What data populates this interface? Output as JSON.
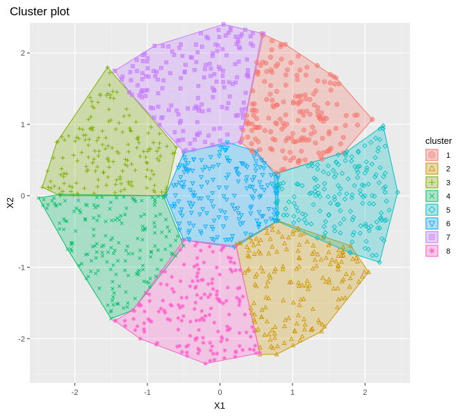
{
  "chart_data": {
    "type": "scatter",
    "title": "Cluster plot",
    "xlabel": "X1",
    "ylabel": "X2",
    "xlim": [
      -2.62,
      2.62
    ],
    "ylim": [
      -2.62,
      2.42
    ],
    "x_ticks": [
      -2,
      -1,
      0,
      1,
      2
    ],
    "y_ticks": [
      -2,
      -1,
      0,
      1,
      2
    ],
    "grid": true,
    "legend": {
      "title": "cluster",
      "placement": "right"
    },
    "series": [
      {
        "name": "1",
        "color": "#F8766D",
        "shape": "circle-in-circle",
        "hull": [
          [
            0.28,
            0.75
          ],
          [
            0.58,
            2.27
          ],
          [
            0.9,
            2.12
          ],
          [
            1.6,
            1.65
          ],
          [
            2.1,
            1.07
          ],
          [
            1.7,
            0.6
          ],
          [
            0.78,
            0.32
          ],
          [
            0.45,
            0.62
          ]
        ]
      },
      {
        "name": "2",
        "color": "#CD9600",
        "shape": "triangle",
        "hull": [
          [
            0.22,
            -0.68
          ],
          [
            0.55,
            -2.22
          ],
          [
            0.78,
            -2.22
          ],
          [
            1.4,
            -1.9
          ],
          [
            2.05,
            -1.07
          ],
          [
            1.8,
            -0.7
          ],
          [
            0.8,
            -0.35
          ]
        ]
      },
      {
        "name": "3",
        "color": "#7CAE00",
        "shape": "plus",
        "hull": [
          [
            -2.45,
            0.12
          ],
          [
            -2.25,
            0.75
          ],
          [
            -1.55,
            1.8
          ],
          [
            -1.25,
            1.45
          ],
          [
            -0.6,
            0.68
          ],
          [
            -0.75,
            0
          ],
          [
            -2.2,
            0
          ]
        ]
      },
      {
        "name": "4",
        "color": "#00BE67",
        "shape": "cross",
        "hull": [
          [
            -2.5,
            -0.03
          ],
          [
            -2.1,
            -0.75
          ],
          [
            -1.5,
            -1.72
          ],
          [
            -1.2,
            -1.6
          ],
          [
            -0.5,
            -0.7
          ],
          [
            -0.78,
            0
          ],
          [
            -2.2,
            0.02
          ]
        ]
      },
      {
        "name": "5",
        "color": "#00BFC4",
        "shape": "diamond",
        "hull": [
          [
            0.75,
            0.3
          ],
          [
            1.75,
            0.62
          ],
          [
            2.25,
            0.98
          ],
          [
            2.45,
            0.05
          ],
          [
            2.2,
            -0.93
          ],
          [
            1.8,
            -0.8
          ],
          [
            0.78,
            -0.35
          ]
        ]
      },
      {
        "name": "6",
        "color": "#00A9FF",
        "shape": "triangle-down",
        "hull": [
          [
            -0.5,
            0.6
          ],
          [
            0.1,
            0.75
          ],
          [
            0.5,
            0.62
          ],
          [
            0.8,
            0.25
          ],
          [
            0.8,
            -0.35
          ],
          [
            0.2,
            -0.72
          ],
          [
            -0.5,
            -0.62
          ],
          [
            -0.75,
            0
          ]
        ]
      },
      {
        "name": "7",
        "color": "#C77CFF",
        "shape": "square-in-square",
        "hull": [
          [
            -1.45,
            1.75
          ],
          [
            -0.9,
            2.1
          ],
          [
            0.05,
            2.4
          ],
          [
            0.6,
            2.27
          ],
          [
            0.28,
            0.75
          ],
          [
            -0.5,
            0.62
          ],
          [
            -1.25,
            1.45
          ]
        ]
      },
      {
        "name": "8",
        "color": "#FF61CC",
        "shape": "asterisk",
        "hull": [
          [
            -1.45,
            -1.75
          ],
          [
            -1.1,
            -2.0
          ],
          [
            -0.2,
            -2.35
          ],
          [
            0.55,
            -2.2
          ],
          [
            0.22,
            -0.7
          ],
          [
            -0.5,
            -0.62
          ],
          [
            -1.2,
            -1.6
          ]
        ]
      }
    ]
  }
}
